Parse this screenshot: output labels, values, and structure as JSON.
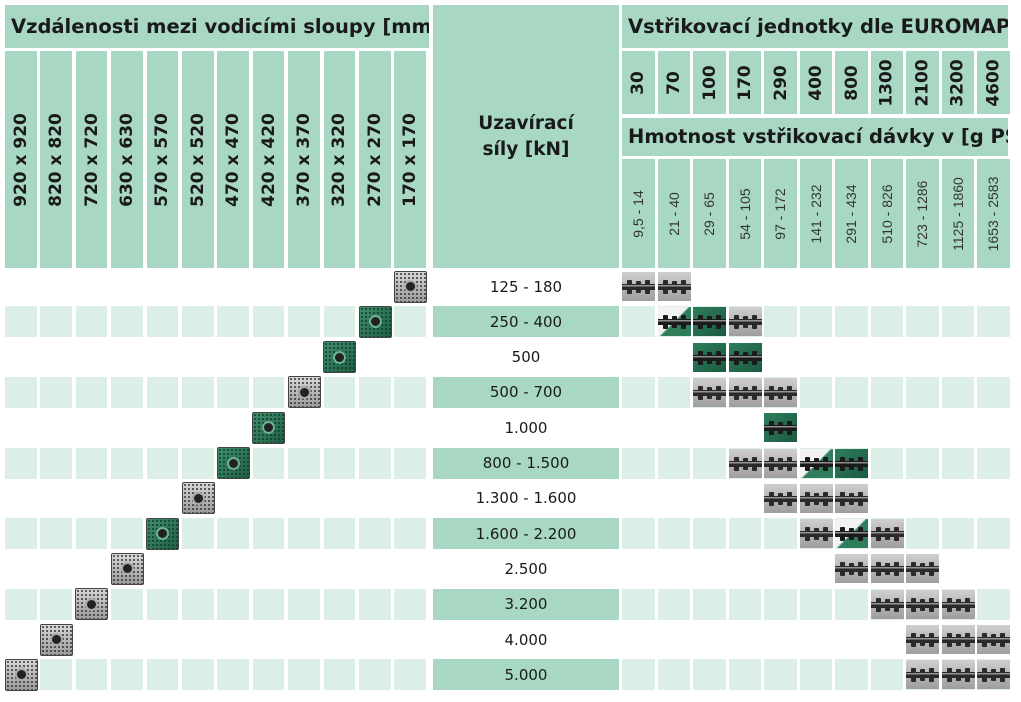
{
  "left_header": {
    "title": "Vzdálenosti mezi vodicími sloupy [mm]"
  },
  "tie_bar_distances": [
    "920 x 920",
    "820 x 820",
    "720 x 720",
    "630 x 630",
    "570 x 570",
    "520 x 520",
    "470 x 470",
    "420 x 420",
    "370 x 370",
    "320 x 320",
    "270 x 270",
    "170 x 170"
  ],
  "middle_header": {
    "line1": "Uzavírací",
    "line2": "síly [kN]"
  },
  "right_header": {
    "title": "Vstřikovací jednotky dle EUROMAP",
    "shot_title": "Hmotnost vstřikovací dávky v [g PS]"
  },
  "euromap_sizes": [
    "30",
    "70",
    "100",
    "170",
    "290",
    "400",
    "800",
    "1300",
    "2100",
    "3200",
    "4600"
  ],
  "shot_weights": [
    "9,5 - 14",
    "21 - 40",
    "29 - 65",
    "54 - 105",
    "97 - 172",
    "141 - 232",
    "291 - 434",
    "510 - 826",
    "723 - 1286",
    "1125 - 1860",
    "1653 - 2583"
  ],
  "rows": [
    {
      "force": "125 - 180",
      "plate_col": 11,
      "plate": "gray",
      "units": [
        [
          0,
          "gray"
        ],
        [
          1,
          "gray"
        ]
      ]
    },
    {
      "force": "250 - 400",
      "plate_col": 10,
      "plate": "green",
      "units": [
        [
          1,
          "half"
        ],
        [
          2,
          "green"
        ],
        [
          3,
          "gray"
        ]
      ]
    },
    {
      "force": "500",
      "plate_col": 9,
      "plate": "green",
      "units": [
        [
          2,
          "green"
        ],
        [
          3,
          "green"
        ]
      ]
    },
    {
      "force": "500 - 700",
      "plate_col": 8,
      "plate": "gray",
      "units": [
        [
          2,
          "gray"
        ],
        [
          3,
          "gray"
        ],
        [
          4,
          "gray"
        ]
      ]
    },
    {
      "force": "1.000",
      "plate_col": 7,
      "plate": "green",
      "units": [
        [
          4,
          "green"
        ]
      ]
    },
    {
      "force": "800 - 1.500",
      "plate_col": 6,
      "plate": "green",
      "units": [
        [
          3,
          "gray"
        ],
        [
          4,
          "gray"
        ],
        [
          5,
          "half"
        ],
        [
          6,
          "green"
        ]
      ]
    },
    {
      "force": "1.300 - 1.600",
      "plate_col": 5,
      "plate": "gray",
      "units": [
        [
          4,
          "gray"
        ],
        [
          5,
          "gray"
        ],
        [
          6,
          "gray"
        ]
      ]
    },
    {
      "force": "1.600 - 2.200",
      "plate_col": 4,
      "plate": "green",
      "units": [
        [
          5,
          "gray"
        ],
        [
          6,
          "half"
        ],
        [
          7,
          "gray"
        ]
      ]
    },
    {
      "force": "2.500",
      "plate_col": 3,
      "plate": "gray",
      "units": [
        [
          6,
          "gray"
        ],
        [
          7,
          "gray"
        ],
        [
          8,
          "gray"
        ]
      ]
    },
    {
      "force": "3.200",
      "plate_col": 2,
      "plate": "gray",
      "units": [
        [
          7,
          "gray"
        ],
        [
          8,
          "gray"
        ],
        [
          9,
          "gray"
        ]
      ]
    },
    {
      "force": "4.000",
      "plate_col": 1,
      "plate": "gray",
      "units": [
        [
          8,
          "gray"
        ],
        [
          9,
          "gray"
        ],
        [
          10,
          "gray"
        ]
      ]
    },
    {
      "force": "5.000",
      "plate_col": 0,
      "plate": "gray",
      "units": [
        [
          8,
          "gray"
        ],
        [
          9,
          "gray"
        ],
        [
          10,
          "gray"
        ]
      ]
    }
  ],
  "colors": {
    "header": "#a8d8c4",
    "band": "#dcefe6",
    "plate_green": "#2e7d5b",
    "plate_gray": "#9e9e9e"
  },
  "icons": {
    "plate": "platen-icon",
    "unit": "injection-unit-icon"
  }
}
